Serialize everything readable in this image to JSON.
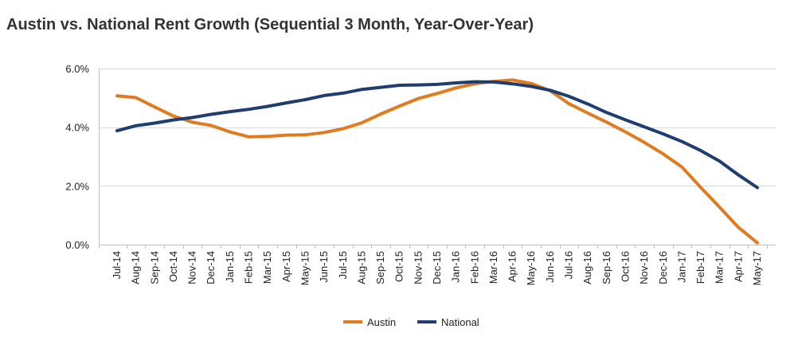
{
  "title": "Austin vs. National Rent Growth (Sequential 3 Month, Year-Over-Year)",
  "chart_data": {
    "type": "line",
    "title": "Austin vs. National Rent Growth (Sequential 3 Month, Year-Over-Year)",
    "xlabel": "",
    "ylabel": "",
    "categories": [
      "Jul-14",
      "Aug-14",
      "Sep-14",
      "Oct-14",
      "Nov-14",
      "Dec-14",
      "Jan-15",
      "Feb-15",
      "Mar-15",
      "Apr-15",
      "May-15",
      "Jun-15",
      "Jul-15",
      "Aug-15",
      "Sep-15",
      "Oct-15",
      "Nov-15",
      "Dec-15",
      "Jan-16",
      "Feb-16",
      "Mar-16",
      "Apr-16",
      "May-16",
      "Jun-16",
      "Jul-16",
      "Aug-16",
      "Sep-16",
      "Oct-16",
      "Nov-16",
      "Dec-16",
      "Jan-17",
      "Feb-17",
      "Mar-17",
      "Apr-17",
      "May-17"
    ],
    "yticks": [
      "0.0%",
      "2.0%",
      "4.0%",
      "6.0%"
    ],
    "ylim": [
      0,
      6
    ],
    "grid": true,
    "legend_position": "bottom",
    "series": [
      {
        "name": "Austin",
        "color": "#e07b20",
        "values": [
          5.07,
          5.01,
          4.69,
          4.38,
          4.17,
          4.06,
          3.84,
          3.67,
          3.69,
          3.73,
          3.74,
          3.82,
          3.95,
          4.15,
          4.45,
          4.72,
          4.98,
          5.15,
          5.34,
          5.48,
          5.56,
          5.61,
          5.49,
          5.24,
          4.8,
          4.48,
          4.17,
          3.84,
          3.48,
          3.09,
          2.64,
          1.94,
          1.27,
          0.58,
          0.06
        ]
      },
      {
        "name": "National",
        "color": "#1f3e6e",
        "values": [
          3.88,
          4.05,
          4.14,
          4.25,
          4.33,
          4.44,
          4.53,
          4.61,
          4.71,
          4.83,
          4.94,
          5.08,
          5.16,
          5.29,
          5.36,
          5.43,
          5.44,
          5.46,
          5.51,
          5.55,
          5.54,
          5.48,
          5.39,
          5.26,
          5.05,
          4.79,
          4.5,
          4.25,
          4.01,
          3.77,
          3.51,
          3.2,
          2.84,
          2.37,
          1.94
        ]
      }
    ]
  }
}
